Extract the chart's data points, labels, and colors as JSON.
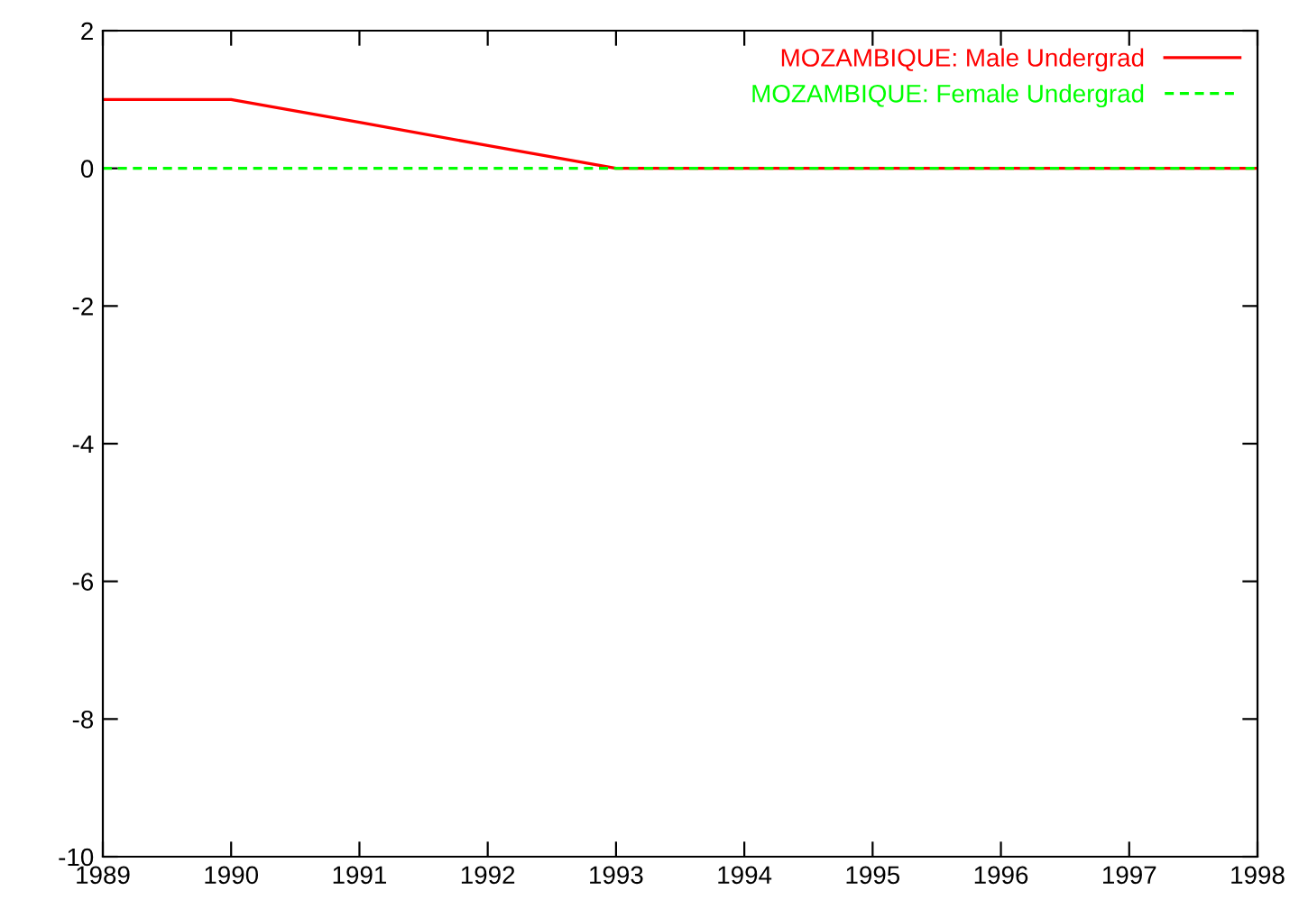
{
  "chart_data": {
    "type": "line",
    "x": [
      1989,
      1990,
      1991,
      1992,
      1993,
      1994,
      1995,
      1996,
      1997,
      1998
    ],
    "series": [
      {
        "name": "MOZAMBIQUE: Male Undergrad",
        "color": "#ff0000",
        "line_style": "solid",
        "values": [
          1,
          1,
          0.67,
          0.33,
          0,
          0,
          0,
          0,
          0,
          0
        ]
      },
      {
        "name": "MOZAMBIQUE: Female Undergrad",
        "color": "#00ff00",
        "line_style": "dashed",
        "values": [
          0,
          0,
          0,
          0,
          0,
          0,
          0,
          0,
          0,
          0
        ]
      }
    ],
    "xlim": [
      1989,
      1998
    ],
    "xticks": [
      1989,
      1990,
      1991,
      1992,
      1993,
      1994,
      1995,
      1996,
      1997,
      1998
    ],
    "ylim": [
      -10,
      2
    ],
    "yticks": [
      -10,
      -8,
      -6,
      -4,
      -2,
      0,
      2
    ],
    "grid": false,
    "legend": "top right",
    "marker": "none"
  }
}
